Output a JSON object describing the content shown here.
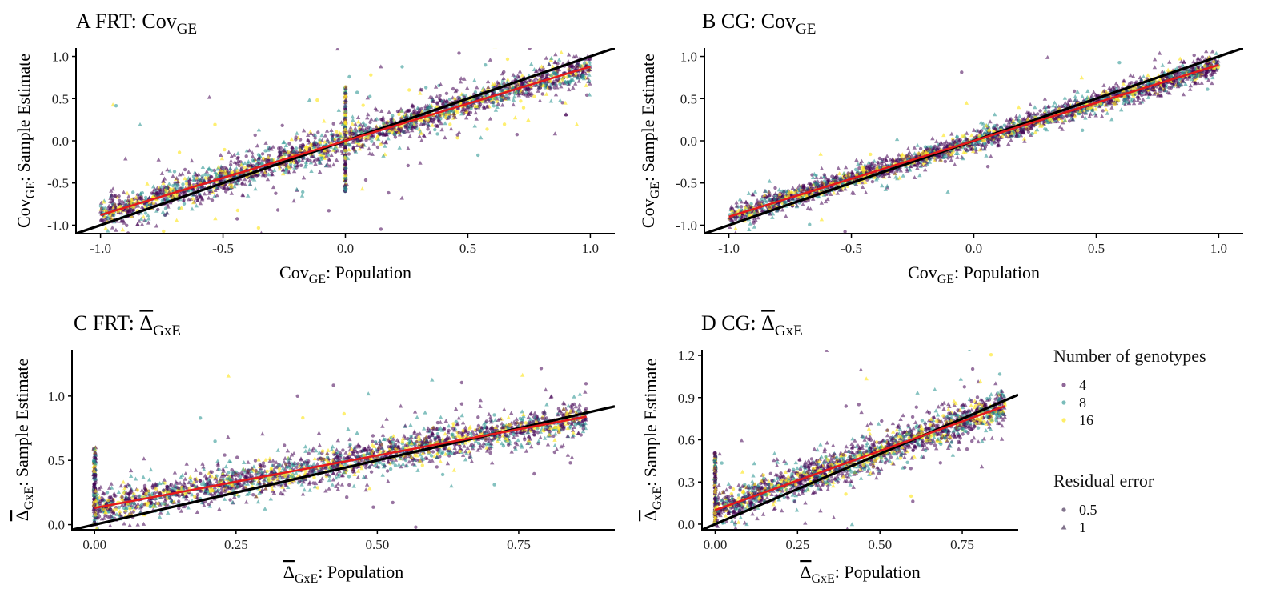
{
  "chart_data": [
    {
      "panel": "A",
      "type": "scatter",
      "title": {
        "letter": "A",
        "prefix": "FRT: ",
        "symbol": "Cov",
        "sub": "GE"
      },
      "xlabel": {
        "symbol": "Cov",
        "sub": "GE",
        "suffix": ": Population"
      },
      "ylabel": {
        "symbol": "Cov",
        "sub": "GE",
        "suffix": ": Sample Estimate"
      },
      "xlim": [
        -1.1,
        1.1
      ],
      "ylim": [
        -1.1,
        1.1
      ],
      "xticks": [
        -1.0,
        -0.5,
        0.0,
        0.5,
        1.0
      ],
      "xtick_labels": [
        "-1.0",
        "-0.5",
        "0.0",
        "0.5",
        "1.0"
      ],
      "yticks": [
        -1.0,
        -0.5,
        0.0,
        0.5,
        1.0
      ],
      "ytick_labels": [
        "-1.0",
        "-0.5",
        "0.0",
        "0.5",
        "1.0"
      ],
      "identity_line": {
        "from": [
          -1.1,
          -1.1
        ],
        "to": [
          1.1,
          1.1
        ]
      },
      "fit_line": {
        "from": [
          -1.0,
          -0.88
        ],
        "to": [
          1.0,
          0.88
        ]
      },
      "spread": 0.17,
      "outlier_fraction": 0.07,
      "spike_at_zero": {
        "x": 0.0,
        "y_range": [
          -0.6,
          0.65
        ]
      },
      "n_points": 2600
    },
    {
      "panel": "B",
      "type": "scatter",
      "title": {
        "letter": "B",
        "prefix": "CG: ",
        "symbol": "Cov",
        "sub": "GE"
      },
      "xlabel": {
        "symbol": "Cov",
        "sub": "GE",
        "suffix": ": Population"
      },
      "ylabel": {
        "symbol": "Cov",
        "sub": "GE",
        "suffix": ": Sample Estimate"
      },
      "xlim": [
        -1.1,
        1.1
      ],
      "ylim": [
        -1.1,
        1.1
      ],
      "xticks": [
        -1.0,
        -0.5,
        0.0,
        0.5,
        1.0
      ],
      "xtick_labels": [
        "-1.0",
        "-0.5",
        "0.0",
        "0.5",
        "1.0"
      ],
      "yticks": [
        -1.0,
        -0.5,
        0.0,
        0.5,
        1.0
      ],
      "ytick_labels": [
        "-1.0",
        "-0.5",
        "0.0",
        "0.5",
        "1.0"
      ],
      "identity_line": {
        "from": [
          -1.1,
          -1.1
        ],
        "to": [
          1.1,
          1.1
        ]
      },
      "fit_line": {
        "from": [
          -1.0,
          -0.9
        ],
        "to": [
          1.0,
          0.9
        ]
      },
      "spread": 0.12,
      "outlier_fraction": 0.02,
      "spike_at_zero": null,
      "n_points": 2600
    },
    {
      "panel": "C",
      "type": "scatter",
      "title": {
        "letter": "C",
        "prefix": "FRT: ",
        "symbol": "Δ",
        "sub": "GxE",
        "overline": true
      },
      "xlabel": {
        "symbol": "Δ",
        "sub": "GxE",
        "suffix": ": Population",
        "overline": true
      },
      "ylabel": {
        "symbol": "Δ",
        "sub": "GxE",
        "suffix": ": Sample Estimate",
        "overline": true
      },
      "xlim": [
        -0.04,
        0.92
      ],
      "ylim": [
        -0.04,
        1.36
      ],
      "xticks": [
        0.0,
        0.25,
        0.5,
        0.75
      ],
      "xtick_labels": [
        "0.00",
        "0.25",
        "0.50",
        "0.75"
      ],
      "yticks": [
        0.0,
        0.5,
        1.0
      ],
      "ytick_labels": [
        "0.0",
        "0.5",
        "1.0"
      ],
      "identity_line": {
        "from": [
          -0.04,
          -0.04
        ],
        "to": [
          0.92,
          0.92
        ]
      },
      "fit_line": {
        "from": [
          0.0,
          0.13
        ],
        "to": [
          0.87,
          0.84
        ]
      },
      "spread": 0.13,
      "outlier_fraction": 0.04,
      "spike_at_zero": {
        "x": 0.0,
        "y_range": [
          0.0,
          0.6
        ]
      },
      "n_points": 2400
    },
    {
      "panel": "D",
      "type": "scatter",
      "title": {
        "letter": "D",
        "prefix": "CG: ",
        "symbol": "Δ",
        "sub": "GxE",
        "overline": true
      },
      "xlabel": {
        "symbol": "Δ",
        "sub": "GxE",
        "suffix": ": Population",
        "overline": true
      },
      "ylabel": {
        "symbol": "Δ",
        "sub": "GxE",
        "suffix": ": Sample Estimate",
        "overline": true
      },
      "xlim": [
        -0.04,
        0.92
      ],
      "ylim": [
        -0.04,
        1.24
      ],
      "xticks": [
        0.0,
        0.25,
        0.5,
        0.75
      ],
      "xtick_labels": [
        "0.00",
        "0.25",
        "0.50",
        "0.75"
      ],
      "yticks": [
        0.0,
        0.3,
        0.6,
        0.9,
        1.2
      ],
      "ytick_labels": [
        "0.0",
        "0.3",
        "0.6",
        "0.9",
        "1.2"
      ],
      "identity_line": {
        "from": [
          -0.04,
          -0.04
        ],
        "to": [
          0.92,
          0.92
        ]
      },
      "fit_line": {
        "from": [
          0.0,
          0.1
        ],
        "to": [
          0.88,
          0.84
        ]
      },
      "spread": 0.12,
      "outlier_fraction": 0.03,
      "spike_at_zero": {
        "x": 0.0,
        "y_range": [
          0.0,
          0.52
        ]
      },
      "n_points": 2000
    }
  ],
  "legend": {
    "genotypes": {
      "title": "Number of genotypes",
      "items": [
        {
          "label": "4",
          "color": "#440154"
        },
        {
          "label": "8",
          "color": "#21908C"
        },
        {
          "label": "16",
          "color": "#FDE725"
        }
      ]
    },
    "residual": {
      "title": "Residual error",
      "items": [
        {
          "label": "0.5",
          "shape": "circle"
        },
        {
          "label": "1",
          "shape": "triangle"
        }
      ]
    }
  },
  "colors": {
    "genotype_4": "#440154",
    "genotype_8": "#21908C",
    "genotype_16": "#FDE725",
    "fit_line": "#E41A1C",
    "identity_line": "#000000",
    "legend_symbol": "#6b5a78"
  }
}
